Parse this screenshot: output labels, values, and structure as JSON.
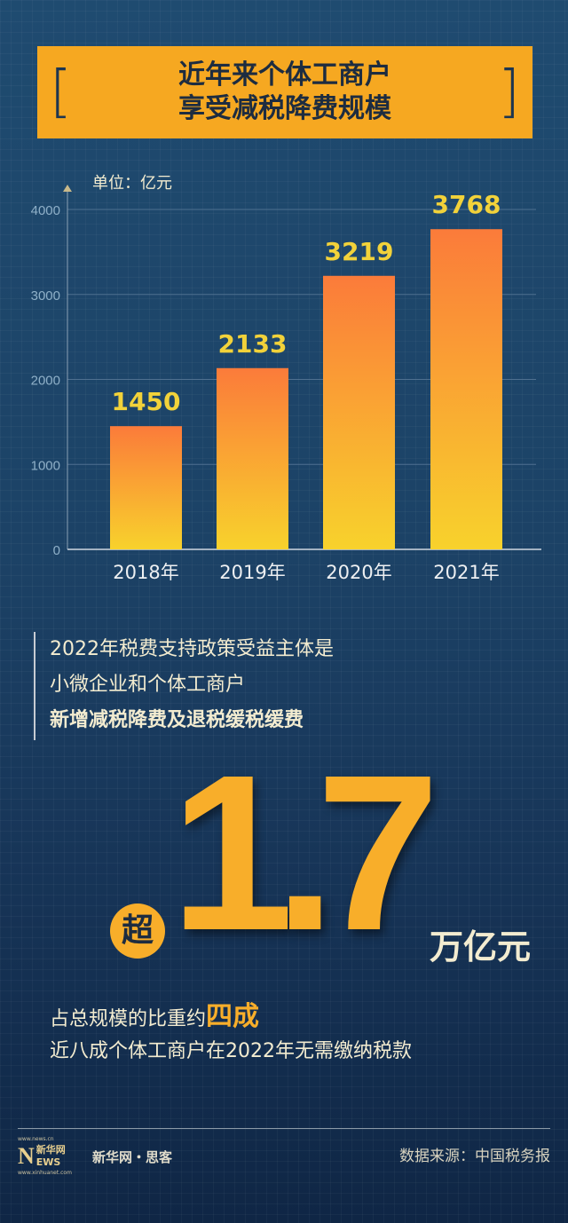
{
  "header": {
    "title_line1": "近年来个体工商户",
    "title_line2": "享受减税降费规模",
    "bracket_left": "[",
    "bracket_right": "]"
  },
  "chart_data": {
    "type": "bar",
    "unit_label": "单位：亿元",
    "categories": [
      "2018年",
      "2019年",
      "2020年",
      "2021年"
    ],
    "values": [
      1450,
      2133,
      3219,
      3768
    ],
    "data_labels": [
      "1450",
      "2133",
      "3219",
      "3768"
    ],
    "yticks": [
      "0",
      "1000",
      "2000",
      "3000",
      "4000"
    ],
    "ylim": [
      0,
      4000
    ],
    "grid": true,
    "colors": {
      "bar_top": "#fb7b3a",
      "bar_bottom": "#f8d22c",
      "label": "#f2d23a"
    }
  },
  "highlight": {
    "line1": "2022年税费支持政策受益主体是",
    "line2": "小微企业和个体工商户",
    "line3": "新增减税降费及退税缓税缓费",
    "prefix": "超",
    "number": "1.7",
    "unit": "万亿元",
    "share_text": "占总规模的比重约",
    "share_value": "四成",
    "note": "近八成个体工商户在2022年无需缴纳税款"
  },
  "footer": {
    "logo_url_top": "www.news.cn",
    "logo_letter": "N",
    "logo_cn": "新华网",
    "logo_ews": "EWS",
    "logo_url_bottom": "www.xinhuanet.com",
    "brand": "新华网・思客",
    "source": "数据来源：中国税务报"
  }
}
